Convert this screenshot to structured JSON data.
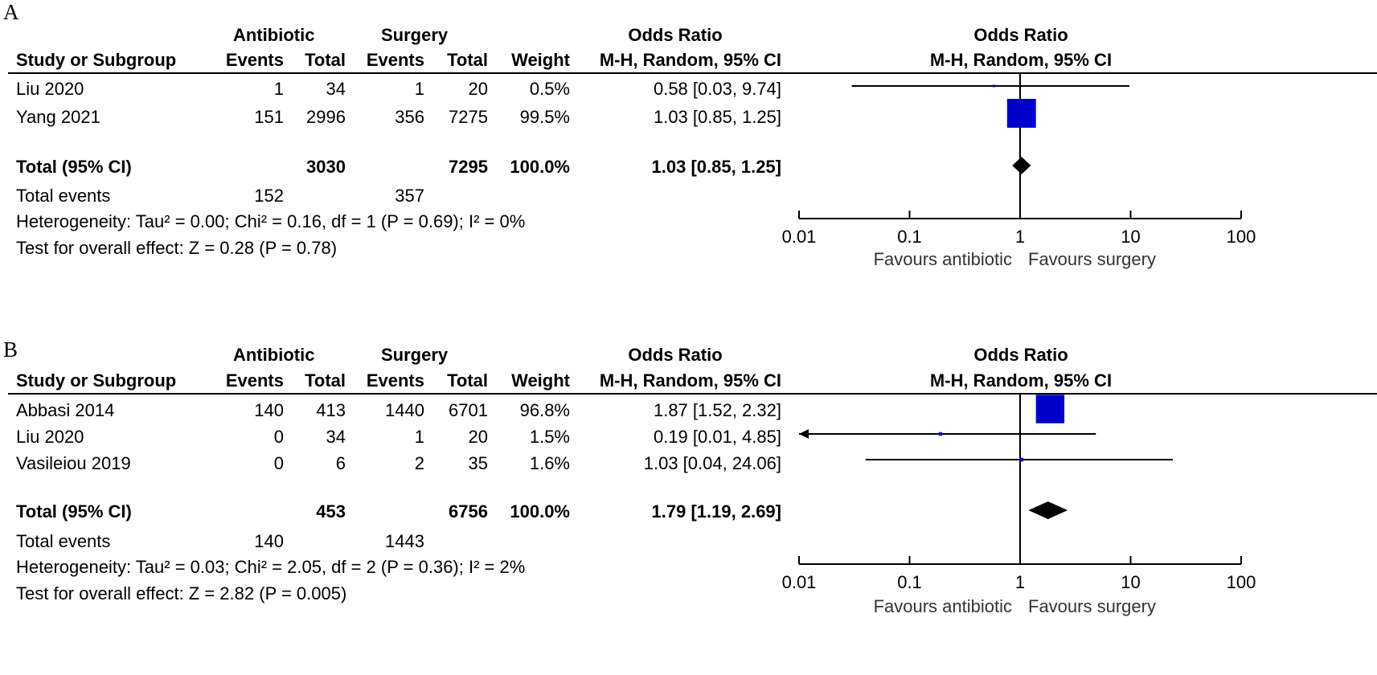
{
  "headers": {
    "study": "Study or Subgroup",
    "group1": "Antibiotic",
    "group2": "Surgery",
    "events": "Events",
    "total": "Total",
    "weight": "Weight",
    "or_title": "Odds Ratio",
    "or_method": "M-H, Random, 95% CI",
    "plot_title": "Odds Ratio",
    "plot_method": "M-H, Random, 95% CI"
  },
  "panels": [
    {
      "label": "A",
      "studies": [
        {
          "name": "Liu 2020",
          "e1": "1",
          "t1": "34",
          "e2": "1",
          "t2": "20",
          "weight": "0.5%",
          "ci": "0.58 [0.03, 9.74]"
        },
        {
          "name": "Yang 2021",
          "e1": "151",
          "t1": "2996",
          "e2": "356",
          "t2": "7275",
          "weight": "99.5%",
          "ci": "1.03 [0.85, 1.25]"
        }
      ],
      "total": {
        "label": "Total (95% CI)",
        "t1": "3030",
        "t2": "7295",
        "weight": "100.0%",
        "ci": "1.03 [0.85, 1.25]"
      },
      "events": {
        "label": "Total events",
        "e1": "152",
        "e2": "357"
      },
      "heterogeneity": "Heterogeneity: Tau² = 0.00; Chi² = 0.16, df = 1 (P = 0.69); I² = 0%",
      "overall": "Test for overall effect: Z = 0.28 (P = 0.78)",
      "favours_left": "Favours antibiotic",
      "favours_right": "Favours surgery"
    },
    {
      "label": "B",
      "studies": [
        {
          "name": "Abbasi 2014",
          "e1": "140",
          "t1": "413",
          "e2": "1440",
          "t2": "6701",
          "weight": "96.8%",
          "ci": "1.87 [1.52, 2.32]"
        },
        {
          "name": "Liu 2020",
          "e1": "0",
          "t1": "34",
          "e2": "1",
          "t2": "20",
          "weight": "1.5%",
          "ci": "0.19 [0.01, 4.85]"
        },
        {
          "name": "Vasileiou 2019",
          "e1": "0",
          "t1": "6",
          "e2": "2",
          "t2": "35",
          "weight": "1.6%",
          "ci": "1.03 [0.04, 24.06]"
        }
      ],
      "total": {
        "label": "Total (95% CI)",
        "t1": "453",
        "t2": "6756",
        "weight": "100.0%",
        "ci": "1.79 [1.19, 2.69]"
      },
      "events": {
        "label": "Total events",
        "e1": "140",
        "e2": "1443"
      },
      "heterogeneity": "Heterogeneity: Tau² = 0.03; Chi² = 2.05, df = 2 (P = 0.36); I² = 2%",
      "overall": "Test for overall effect: Z = 2.82 (P = 0.005)",
      "favours_left": "Favours antibiotic",
      "favours_right": "Favours surgery"
    }
  ],
  "chart_data": [
    {
      "type": "scatter",
      "xscale": "log",
      "xlim": [
        0.01,
        100
      ],
      "x_ticks": [
        "0.01",
        "0.1",
        "1",
        "10",
        "100"
      ],
      "reference_line": 1,
      "marker_color": "#0000cc",
      "points": [
        {
          "study": "Liu 2020",
          "or": 0.58,
          "lower": 0.03,
          "upper": 9.74,
          "weight": 0.5
        },
        {
          "study": "Yang 2021",
          "or": 1.03,
          "lower": 0.85,
          "upper": 1.25,
          "weight": 99.5
        }
      ],
      "pooled": {
        "or": 1.03,
        "lower": 0.85,
        "upper": 1.25
      }
    },
    {
      "type": "scatter",
      "xscale": "log",
      "xlim": [
        0.01,
        100
      ],
      "x_ticks": [
        "0.01",
        "0.1",
        "1",
        "10",
        "100"
      ],
      "reference_line": 1,
      "marker_color": "#0000cc",
      "points": [
        {
          "study": "Abbasi 2014",
          "or": 1.87,
          "lower": 1.52,
          "upper": 2.32,
          "weight": 96.8
        },
        {
          "study": "Liu 2020",
          "or": 0.19,
          "lower": 0.01,
          "upper": 4.85,
          "weight": 1.5
        },
        {
          "study": "Vasileiou 2019",
          "or": 1.03,
          "lower": 0.04,
          "upper": 24.06,
          "weight": 1.6
        }
      ],
      "pooled": {
        "or": 1.79,
        "lower": 1.19,
        "upper": 2.69
      }
    }
  ]
}
